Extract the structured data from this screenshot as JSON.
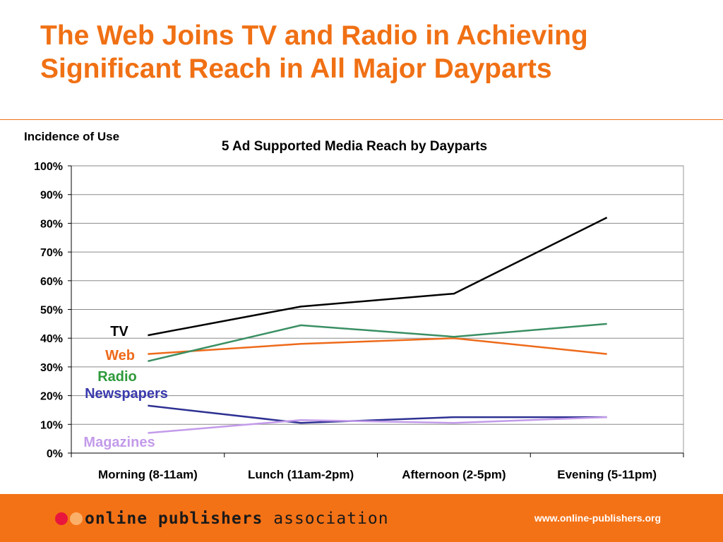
{
  "slide": {
    "title": "The Web Joins TV and Radio in Achieving Significant Reach in All Major Dayparts"
  },
  "chart_data": {
    "type": "line",
    "title": "5 Ad Supported Media Reach by Dayparts",
    "ylabel": "Incidence of Use",
    "xlabel": "",
    "categories": [
      "Morning (8-11am)",
      "Lunch (11am-2pm)",
      "Afternoon (2-5pm)",
      "Evening (5-11pm)"
    ],
    "ylim": [
      0,
      100
    ],
    "yticks": [
      0,
      10,
      20,
      30,
      40,
      50,
      60,
      70,
      80,
      90,
      100
    ],
    "ytick_labels": [
      "0%",
      "10%",
      "20%",
      "30%",
      "40%",
      "50%",
      "60%",
      "70%",
      "80%",
      "90%",
      "100%"
    ],
    "grid": true,
    "legend": "inline-left",
    "series": [
      {
        "name": "TV",
        "color": "#000000",
        "values": [
          41,
          51,
          55.5,
          82
        ]
      },
      {
        "name": "Web",
        "color": "#ee6a1a",
        "values": [
          34.5,
          38,
          40,
          34.5
        ]
      },
      {
        "name": "Radio",
        "color": "#3a8f63",
        "values": [
          32,
          44.5,
          40.5,
          45
        ]
      },
      {
        "name": "Newspapers",
        "color": "#2e3192",
        "values": [
          16.5,
          10.5,
          12.5,
          12.5
        ]
      },
      {
        "name": "Magazines",
        "color": "#c39bea",
        "values": [
          7,
          11.5,
          10.5,
          12.5
        ]
      }
    ],
    "label_colors": {
      "TV": "#000000",
      "Web": "#ee6a1a",
      "Radio": "#2e9a3a",
      "Newspapers": "#3a3aad",
      "Magazines": "#c39bea"
    }
  },
  "footer": {
    "logo_part1": "online publishers",
    "logo_part2": "association",
    "logo_dot_colors": [
      "#e8163c",
      "#fbb06a"
    ],
    "url": "www.online-publishers.org"
  }
}
